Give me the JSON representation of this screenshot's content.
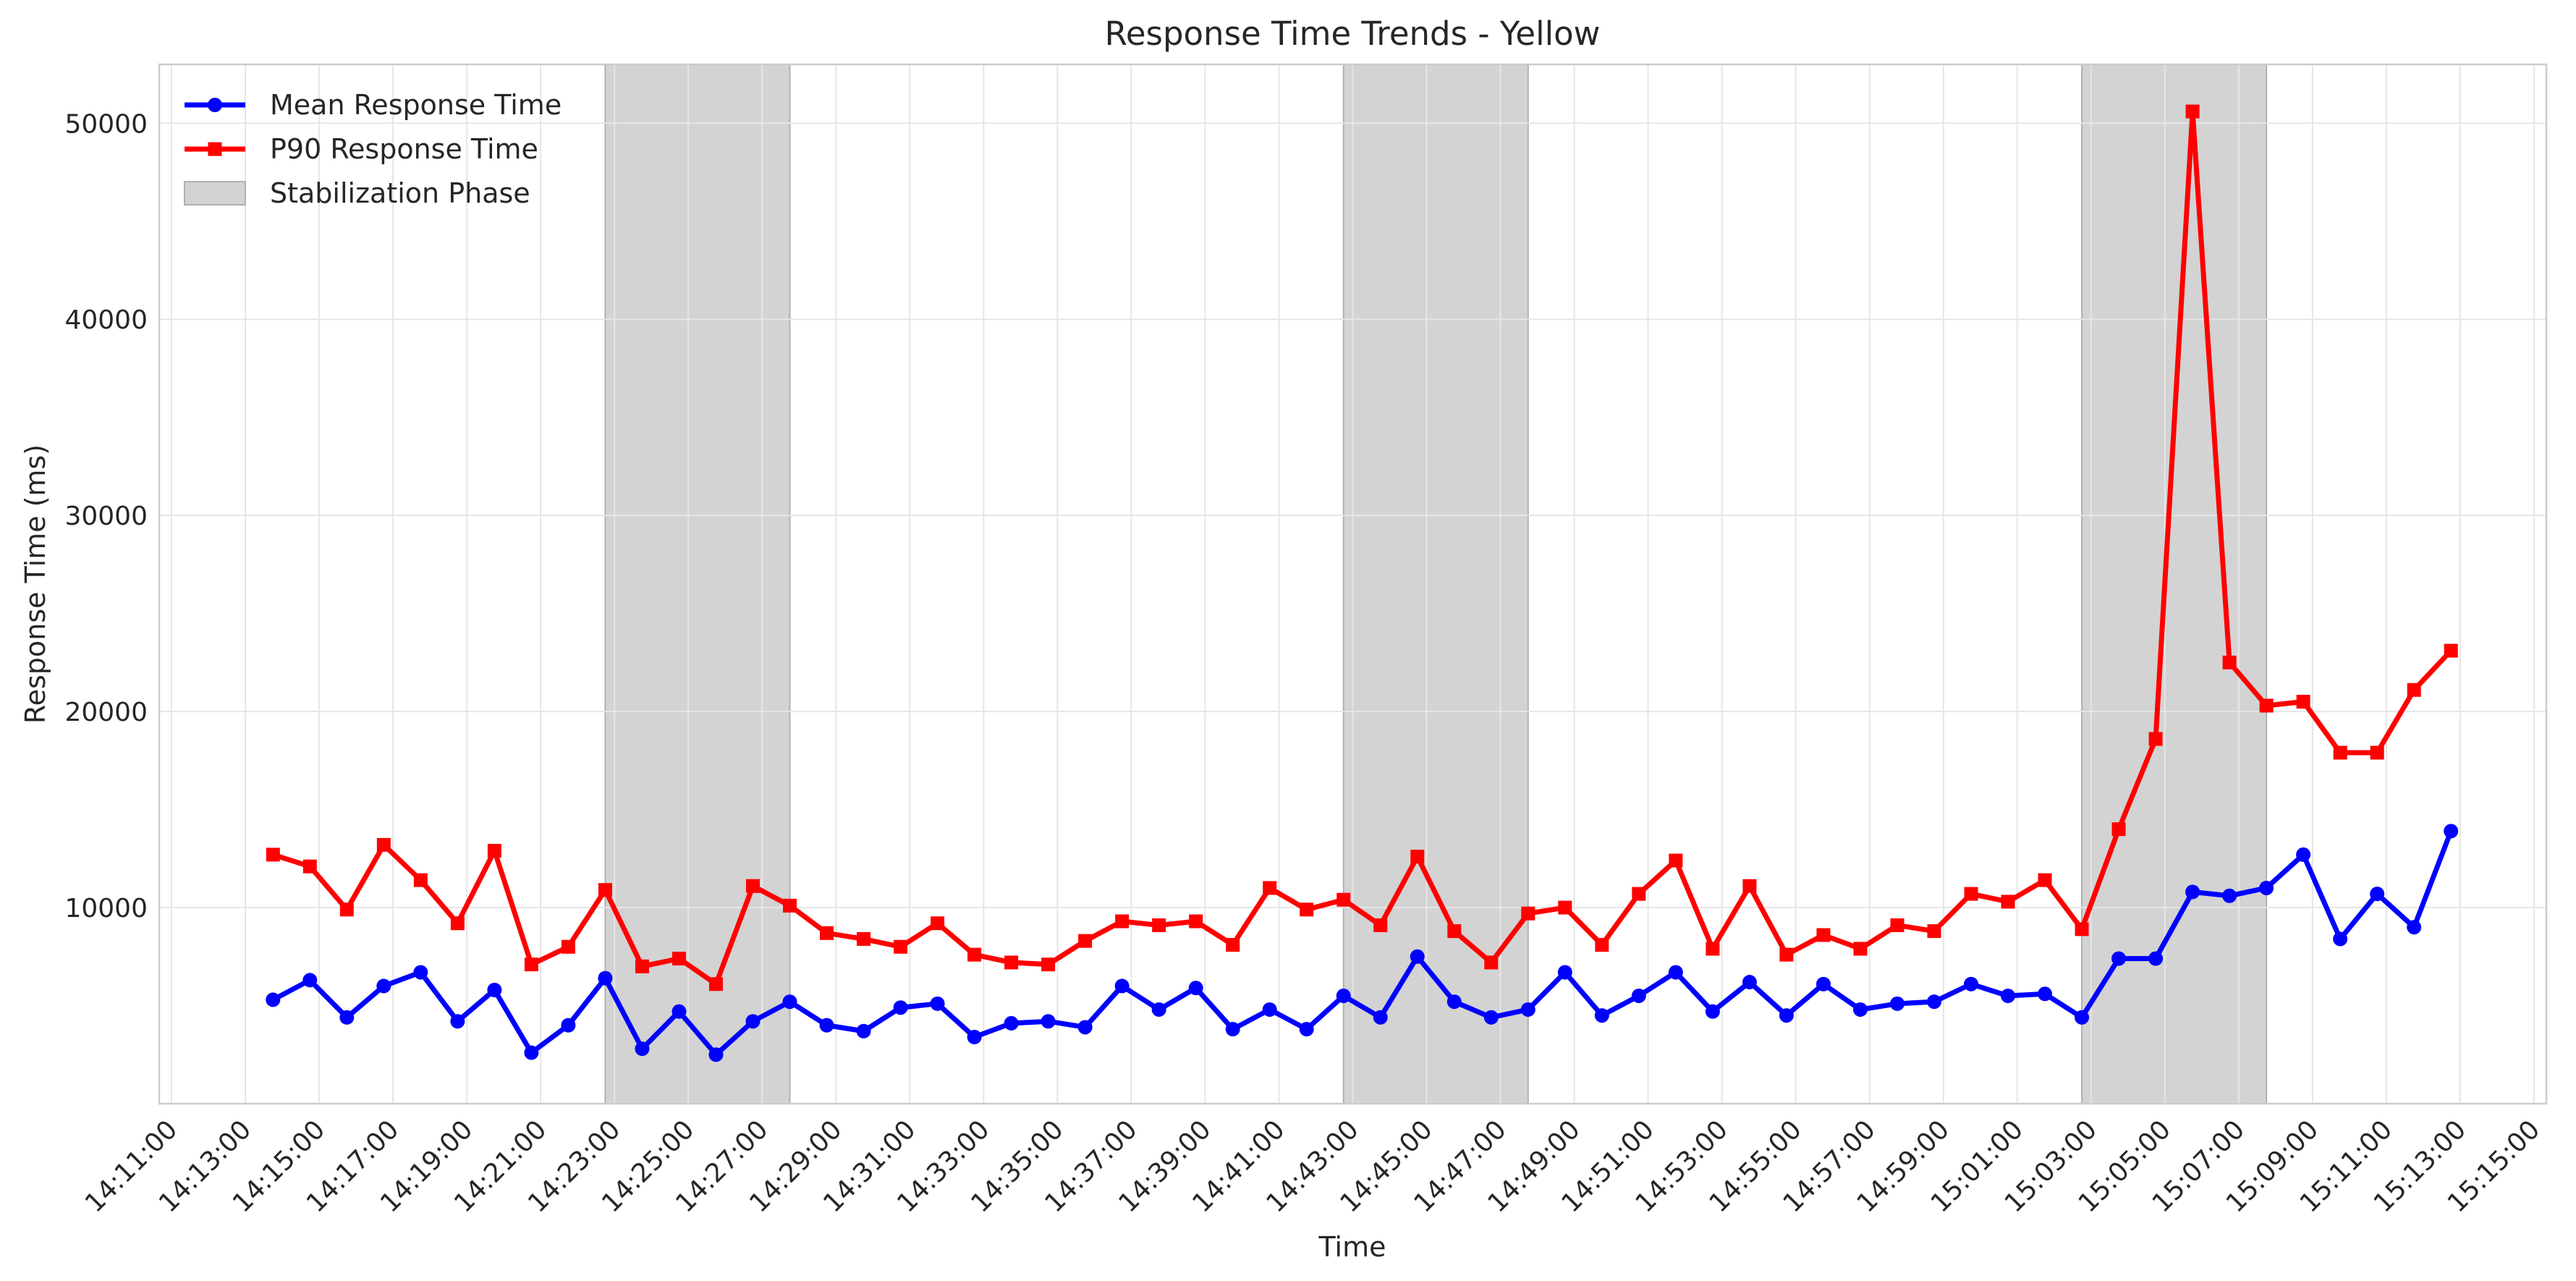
{
  "chart_data": {
    "type": "line",
    "title": "Response Time Trends - Yellow",
    "xlabel": "Time",
    "ylabel": "Response Time (ms)",
    "ylim": [
      0,
      53000
    ],
    "xlim": [
      "14:10:40",
      "15:15:20"
    ],
    "yticks": [
      10000,
      20000,
      30000,
      40000,
      50000
    ],
    "xticks": [
      "14:11:00",
      "14:13:00",
      "14:15:00",
      "14:17:00",
      "14:19:00",
      "14:21:00",
      "14:23:00",
      "14:25:00",
      "14:27:00",
      "14:29:00",
      "14:31:00",
      "14:33:00",
      "14:35:00",
      "14:37:00",
      "14:39:00",
      "14:41:00",
      "14:43:00",
      "14:45:00",
      "14:47:00",
      "14:49:00",
      "14:51:00",
      "14:53:00",
      "14:55:00",
      "14:57:00",
      "14:59:00",
      "15:01:00",
      "15:03:00",
      "15:05:00",
      "15:07:00",
      "15:09:00",
      "15:11:00",
      "15:13:00",
      "15:15:00"
    ],
    "grid": true,
    "legend_position": "top-left",
    "x": [
      "14:13:45",
      "14:14:45",
      "14:15:45",
      "14:16:45",
      "14:17:45",
      "14:18:45",
      "14:19:45",
      "14:20:45",
      "14:21:45",
      "14:22:45",
      "14:23:45",
      "14:24:45",
      "14:25:45",
      "14:26:45",
      "14:27:45",
      "14:28:45",
      "14:29:45",
      "14:30:45",
      "14:31:45",
      "14:32:45",
      "14:33:45",
      "14:34:45",
      "14:35:45",
      "14:36:45",
      "14:37:45",
      "14:38:45",
      "14:39:45",
      "14:40:45",
      "14:41:45",
      "14:42:45",
      "14:43:45",
      "14:44:45",
      "14:45:45",
      "14:46:45",
      "14:47:45",
      "14:48:45",
      "14:49:45",
      "14:50:45",
      "14:51:45",
      "14:52:45",
      "14:53:45",
      "14:54:45",
      "14:55:45",
      "14:56:45",
      "14:57:45",
      "14:58:45",
      "14:59:45",
      "15:00:45",
      "15:01:45",
      "15:02:45",
      "15:03:45",
      "15:04:45",
      "15:05:45",
      "15:06:45",
      "15:07:45",
      "15:08:45",
      "15:09:45",
      "15:10:45",
      "15:11:45",
      "15:12:45"
    ],
    "series": [
      {
        "name": "Mean Response Time",
        "color": "#0000ff",
        "marker": "circle",
        "values": [
          5300,
          6300,
          4400,
          6000,
          6700,
          4200,
          5800,
          2600,
          4000,
          6400,
          2800,
          4700,
          2500,
          4200,
          5200,
          4000,
          3700,
          4900,
          5100,
          3400,
          4100,
          4200,
          3900,
          6000,
          4800,
          5900,
          3800,
          4800,
          3800,
          5500,
          4400,
          7500,
          5200,
          4400,
          4800,
          6700,
          4500,
          5500,
          6700,
          4700,
          6200,
          4500,
          6100,
          4800,
          5100,
          5200,
          6100,
          5500,
          5600,
          4400,
          7400,
          7400,
          10800,
          10600,
          11000,
          12700,
          8400,
          10700,
          9000,
          13900
        ]
      },
      {
        "name": "P90 Response Time",
        "color": "#ff0000",
        "marker": "square",
        "values": [
          12700,
          12100,
          9900,
          13200,
          11400,
          9200,
          12900,
          7100,
          8000,
          10900,
          7000,
          7400,
          6100,
          11100,
          10100,
          8700,
          8400,
          8000,
          9200,
          7600,
          7200,
          7100,
          8300,
          9300,
          9100,
          9300,
          8100,
          11000,
          9900,
          10400,
          9100,
          12600,
          8800,
          7200,
          9700,
          10000,
          8100,
          10700,
          12400,
          7900,
          11100,
          7600,
          8600,
          7900,
          9100,
          8800,
          10700,
          10300,
          11400,
          8900,
          14000,
          18600,
          50600,
          22500,
          20300,
          20500,
          17900,
          17900,
          21100,
          23100
        ]
      }
    ],
    "stabilization_phases": [
      {
        "start": "14:22:45",
        "end": "14:27:45"
      },
      {
        "start": "14:42:45",
        "end": "14:47:45"
      },
      {
        "start": "15:02:45",
        "end": "15:07:45"
      }
    ],
    "legend": [
      {
        "label": "Mean Response Time",
        "color": "#0000ff",
        "kind": "line-circle"
      },
      {
        "label": "P90 Response Time",
        "color": "#ff0000",
        "kind": "line-square"
      },
      {
        "label": "Stabilization Phase",
        "color": "#d3d3d3",
        "kind": "patch"
      }
    ]
  }
}
